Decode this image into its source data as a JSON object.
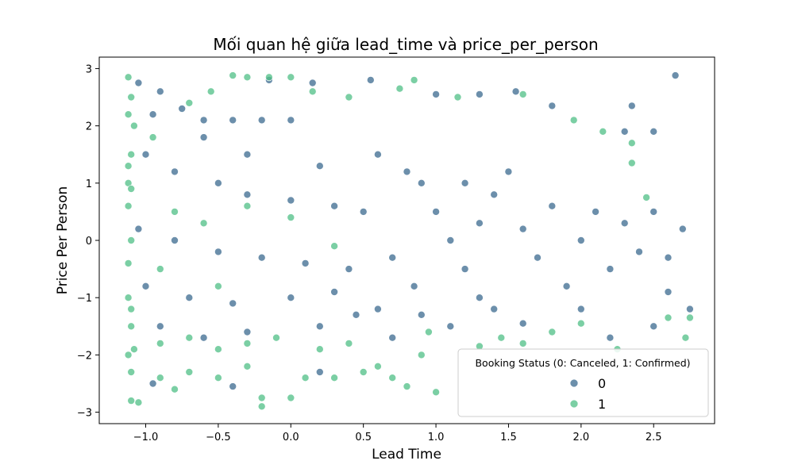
{
  "chart_data": {
    "type": "scatter",
    "title": "Mối quan hệ giữa lead_time và price_per_person",
    "xlabel": "Lead Time",
    "ylabel": "Price Per Person",
    "xlim": [
      -1.32,
      2.92
    ],
    "ylim": [
      -3.2,
      3.2
    ],
    "xticks": [
      -1.0,
      -0.5,
      0.0,
      0.5,
      1.0,
      1.5,
      2.0,
      2.5
    ],
    "xtick_labels": [
      "−1.0",
      "−0.5",
      "0.0",
      "0.5",
      "1.0",
      "1.5",
      "2.0",
      "2.5"
    ],
    "yticks": [
      -3,
      -2,
      -1,
      0,
      1,
      2,
      3
    ],
    "ytick_labels": [
      "−3",
      "−2",
      "−1",
      "0",
      "1",
      "2",
      "3"
    ],
    "grid": false,
    "legend": {
      "title": "Booking Status (0: Canceled, 1: Confirmed)",
      "placement": "lower-right",
      "entries": [
        {
          "label": "0",
          "color": "#3b6a8f"
        },
        {
          "label": "1",
          "color": "#4fbf86"
        }
      ]
    },
    "series": [
      {
        "name": "0",
        "color": "#3b6a8f",
        "points": [
          [
            -1.05,
            2.75
          ],
          [
            -0.9,
            2.6
          ],
          [
            -0.75,
            2.3
          ],
          [
            -0.6,
            2.1
          ],
          [
            -0.4,
            2.1
          ],
          [
            -0.2,
            2.1
          ],
          [
            0.0,
            2.1
          ],
          [
            -1.0,
            1.5
          ],
          [
            -0.8,
            1.2
          ],
          [
            -0.5,
            1.0
          ],
          [
            -0.3,
            0.8
          ],
          [
            0.0,
            0.7
          ],
          [
            0.3,
            0.6
          ],
          [
            0.5,
            0.5
          ],
          [
            -1.05,
            0.2
          ],
          [
            -0.8,
            0.0
          ],
          [
            -0.5,
            -0.2
          ],
          [
            -0.2,
            -0.3
          ],
          [
            0.1,
            -0.4
          ],
          [
            0.4,
            -0.5
          ],
          [
            0.7,
            -0.3
          ],
          [
            -1.0,
            -0.8
          ],
          [
            -0.7,
            -1.0
          ],
          [
            -0.4,
            -1.1
          ],
          [
            0.0,
            -1.0
          ],
          [
            0.3,
            -0.9
          ],
          [
            0.6,
            -1.2
          ],
          [
            0.9,
            -1.3
          ],
          [
            0.9,
            1.0
          ],
          [
            1.0,
            0.5
          ],
          [
            1.1,
            0.0
          ],
          [
            1.2,
            -0.5
          ],
          [
            1.3,
            0.3
          ],
          [
            1.4,
            0.8
          ],
          [
            1.5,
            1.2
          ],
          [
            1.6,
            0.2
          ],
          [
            1.7,
            -0.3
          ],
          [
            1.8,
            0.6
          ],
          [
            1.9,
            -0.8
          ],
          [
            2.0,
            0.0
          ],
          [
            2.1,
            0.5
          ],
          [
            2.2,
            -0.5
          ],
          [
            2.3,
            0.3
          ],
          [
            2.4,
            -0.2
          ],
          [
            2.5,
            0.5
          ],
          [
            2.6,
            -0.3
          ],
          [
            2.7,
            0.2
          ],
          [
            2.65,
            2.88
          ],
          [
            2.35,
            2.35
          ],
          [
            2.3,
            1.9
          ],
          [
            2.5,
            1.9
          ],
          [
            1.8,
            2.35
          ],
          [
            1.55,
            2.6
          ],
          [
            1.3,
            2.55
          ],
          [
            1.0,
            2.55
          ],
          [
            0.55,
            2.8
          ],
          [
            -0.15,
            2.8
          ],
          [
            0.15,
            2.75
          ],
          [
            2.2,
            -1.7
          ],
          [
            2.5,
            -1.5
          ],
          [
            1.6,
            -1.45
          ],
          [
            1.1,
            -1.5
          ],
          [
            0.7,
            -1.7
          ],
          [
            -0.4,
            -2.55
          ],
          [
            0.2,
            -2.3
          ],
          [
            -0.95,
            -2.5
          ],
          [
            2.75,
            -1.2
          ],
          [
            2.6,
            -0.9
          ],
          [
            2.0,
            -1.2
          ],
          [
            1.4,
            -1.2
          ],
          [
            -0.95,
            2.2
          ],
          [
            -0.6,
            1.8
          ],
          [
            -0.3,
            1.5
          ],
          [
            0.2,
            1.3
          ],
          [
            0.6,
            1.5
          ],
          [
            0.8,
            1.2
          ],
          [
            1.2,
            1.0
          ],
          [
            -0.9,
            -1.5
          ],
          [
            -0.6,
            -1.7
          ],
          [
            -0.3,
            -1.6
          ],
          [
            0.2,
            -1.5
          ],
          [
            0.45,
            -1.3
          ],
          [
            0.85,
            -0.8
          ],
          [
            1.3,
            -1.0
          ]
        ]
      },
      {
        "name": "1",
        "color": "#4fbf86",
        "points": [
          [
            -1.12,
            2.85
          ],
          [
            -1.1,
            2.5
          ],
          [
            -1.08,
            2.0
          ],
          [
            -1.1,
            1.5
          ],
          [
            -1.12,
            1.0
          ],
          [
            -1.1,
            0.0
          ],
          [
            -1.12,
            -1.0
          ],
          [
            -1.1,
            -1.5
          ],
          [
            -1.08,
            -1.9
          ],
          [
            -1.1,
            -2.3
          ],
          [
            -1.1,
            -2.8
          ],
          [
            -1.05,
            -2.83
          ],
          [
            -0.9,
            -2.4
          ],
          [
            -0.8,
            -2.6
          ],
          [
            -0.7,
            -2.3
          ],
          [
            -0.5,
            -2.4
          ],
          [
            -0.3,
            -2.2
          ],
          [
            -0.2,
            -2.9
          ],
          [
            -0.2,
            -2.75
          ],
          [
            0.0,
            -2.75
          ],
          [
            0.1,
            -2.4
          ],
          [
            0.3,
            -2.4
          ],
          [
            0.5,
            -2.3
          ],
          [
            0.7,
            -2.4
          ],
          [
            0.9,
            -2.0
          ],
          [
            1.0,
            -2.65
          ],
          [
            0.8,
            -2.55
          ],
          [
            0.6,
            -2.2
          ],
          [
            -0.9,
            -1.8
          ],
          [
            -0.7,
            -1.7
          ],
          [
            -0.5,
            -1.9
          ],
          [
            -0.3,
            -1.8
          ],
          [
            -0.1,
            -1.7
          ],
          [
            0.2,
            -1.9
          ],
          [
            0.4,
            -1.8
          ],
          [
            -0.95,
            1.8
          ],
          [
            -0.7,
            2.4
          ],
          [
            -0.55,
            2.6
          ],
          [
            -0.4,
            2.88
          ],
          [
            -0.3,
            2.85
          ],
          [
            -0.15,
            2.85
          ],
          [
            0.0,
            2.85
          ],
          [
            0.15,
            2.6
          ],
          [
            0.4,
            2.5
          ],
          [
            0.75,
            2.65
          ],
          [
            0.85,
            2.8
          ],
          [
            1.15,
            2.5
          ],
          [
            1.6,
            2.55
          ],
          [
            1.95,
            2.1
          ],
          [
            2.15,
            1.9
          ],
          [
            2.35,
            1.7
          ],
          [
            2.35,
            1.35
          ],
          [
            2.45,
            0.75
          ],
          [
            2.25,
            -1.9
          ],
          [
            2.72,
            -1.7
          ],
          [
            2.75,
            -1.35
          ],
          [
            -0.8,
            0.5
          ],
          [
            -0.6,
            0.3
          ],
          [
            -0.9,
            -0.5
          ],
          [
            -0.5,
            -0.8
          ],
          [
            0.0,
            0.4
          ],
          [
            0.3,
            -0.1
          ],
          [
            -0.3,
            0.6
          ],
          [
            1.8,
            -1.6
          ],
          [
            1.6,
            -1.8
          ],
          [
            1.3,
            -1.85
          ],
          [
            1.45,
            -1.7
          ],
          [
            0.95,
            -1.6
          ],
          [
            2.0,
            -1.45
          ],
          [
            2.6,
            -1.35
          ],
          [
            -1.12,
            0.6
          ],
          [
            -1.12,
            -0.4
          ],
          [
            -1.12,
            2.2
          ],
          [
            -1.12,
            1.3
          ],
          [
            -1.12,
            -2.0
          ],
          [
            -1.1,
            -1.2
          ],
          [
            -1.1,
            0.9
          ]
        ]
      }
    ]
  }
}
